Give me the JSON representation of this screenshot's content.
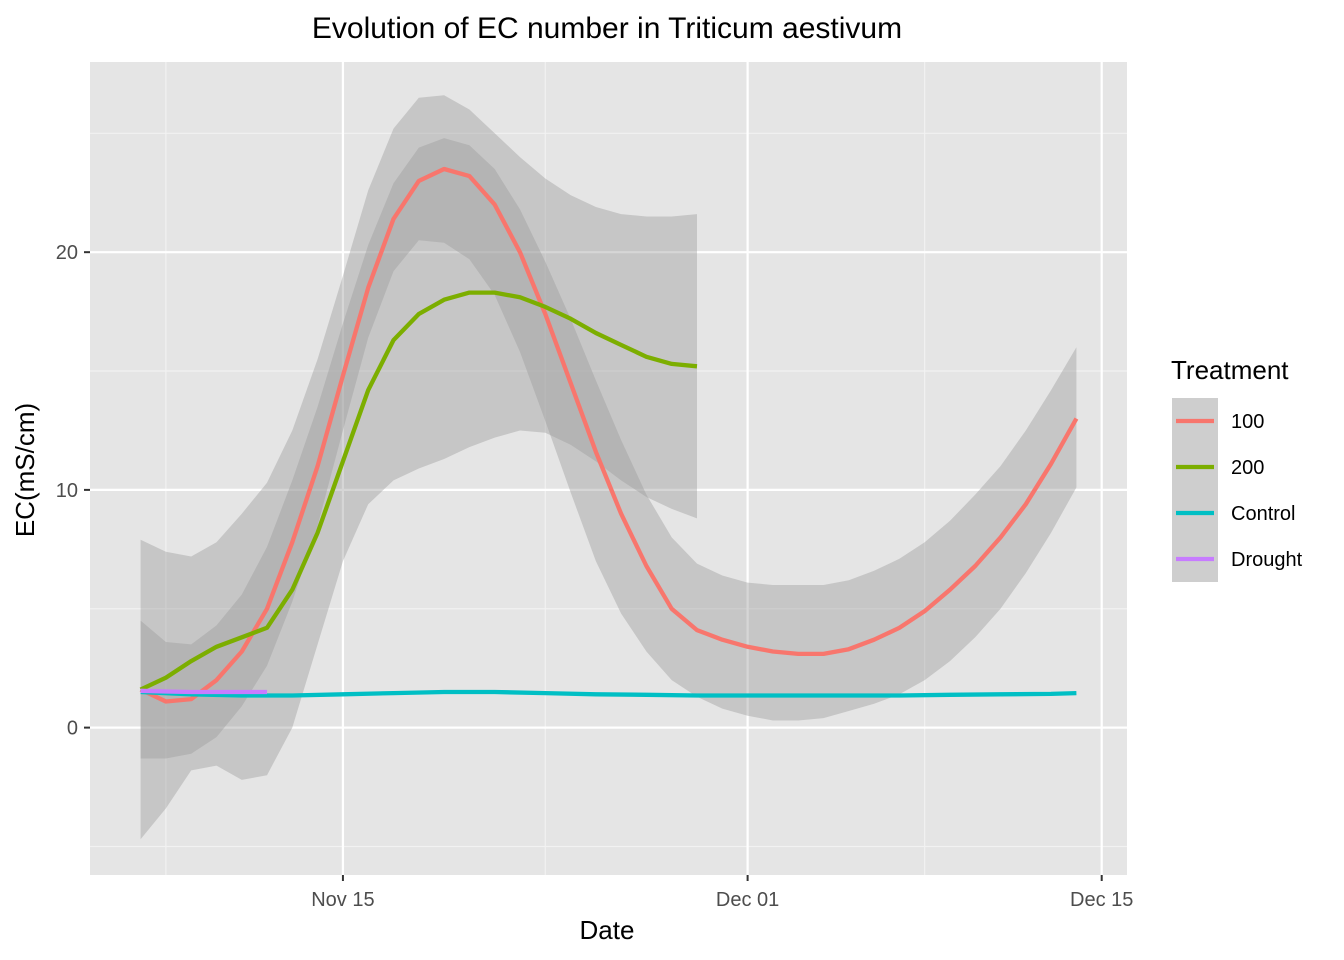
{
  "chart_data": {
    "type": "line",
    "title": "Evolution of EC number in Triticum aestivum",
    "xlabel": "Date",
    "ylabel": "EC(mS/cm)",
    "x_type": "date",
    "xlim": [
      "2021-11-05",
      "2021-12-16"
    ],
    "ylim": [
      -6.2,
      28
    ],
    "x_ticks": [
      {
        "date": "2021-11-15",
        "label": "Nov 15"
      },
      {
        "date": "2021-12-01",
        "label": "Dec 01"
      },
      {
        "date": "2021-12-15",
        "label": "Dec 15"
      }
    ],
    "x_minor_grid": [
      "2021-11-08",
      "2021-11-23",
      "2021-12-08"
    ],
    "y_ticks": [
      0,
      10,
      20
    ],
    "y_minor_grid": [
      -5,
      5,
      15,
      25
    ],
    "grid": true,
    "background": "#e5e5e5",
    "band_color": "#999999",
    "legend": {
      "title": "Treatment",
      "position": "right"
    },
    "series": [
      {
        "name": "100",
        "color": "#f8766d",
        "points": [
          [
            "2021-11-07",
            1.6
          ],
          [
            "2021-11-08",
            1.1
          ],
          [
            "2021-11-09",
            1.2
          ],
          [
            "2021-11-10",
            2.0
          ],
          [
            "2021-11-11",
            3.2
          ],
          [
            "2021-11-12",
            5.0
          ],
          [
            "2021-11-13",
            7.8
          ],
          [
            "2021-11-14",
            11.0
          ],
          [
            "2021-11-15",
            14.8
          ],
          [
            "2021-11-16",
            18.5
          ],
          [
            "2021-11-17",
            21.4
          ],
          [
            "2021-11-18",
            23.0
          ],
          [
            "2021-11-19",
            23.5
          ],
          [
            "2021-11-20",
            23.2
          ],
          [
            "2021-11-21",
            22.0
          ],
          [
            "2021-11-22",
            20.0
          ],
          [
            "2021-11-23",
            17.4
          ],
          [
            "2021-11-24",
            14.5
          ],
          [
            "2021-11-25",
            11.6
          ],
          [
            "2021-11-26",
            9.0
          ],
          [
            "2021-11-27",
            6.8
          ],
          [
            "2021-11-28",
            5.0
          ],
          [
            "2021-11-29",
            4.1
          ],
          [
            "2021-11-30",
            3.7
          ],
          [
            "2021-12-01",
            3.4
          ],
          [
            "2021-12-02",
            3.2
          ],
          [
            "2021-12-03",
            3.1
          ],
          [
            "2021-12-04",
            3.1
          ],
          [
            "2021-12-05",
            3.3
          ],
          [
            "2021-12-06",
            3.7
          ],
          [
            "2021-12-07",
            4.2
          ],
          [
            "2021-12-08",
            4.9
          ],
          [
            "2021-12-09",
            5.8
          ],
          [
            "2021-12-10",
            6.8
          ],
          [
            "2021-12-11",
            8.0
          ],
          [
            "2021-12-12",
            9.4
          ],
          [
            "2021-12-13",
            11.1
          ],
          [
            "2021-12-14",
            13.0
          ]
        ],
        "band_upper": [
          [
            "2021-11-07",
            4.5
          ],
          [
            "2021-11-08",
            3.6
          ],
          [
            "2021-11-09",
            3.5
          ],
          [
            "2021-11-10",
            4.3
          ],
          [
            "2021-11-11",
            5.6
          ],
          [
            "2021-11-12",
            7.6
          ],
          [
            "2021-11-13",
            10.4
          ],
          [
            "2021-11-14",
            13.5
          ],
          [
            "2021-11-15",
            17.0
          ],
          [
            "2021-11-16",
            20.3
          ],
          [
            "2021-11-17",
            22.9
          ],
          [
            "2021-11-18",
            24.4
          ],
          [
            "2021-11-19",
            24.8
          ],
          [
            "2021-11-20",
            24.5
          ],
          [
            "2021-11-21",
            23.5
          ],
          [
            "2021-11-22",
            21.8
          ],
          [
            "2021-11-23",
            19.6
          ],
          [
            "2021-11-24",
            17.2
          ],
          [
            "2021-11-25",
            14.6
          ],
          [
            "2021-11-26",
            12.1
          ],
          [
            "2021-11-27",
            9.8
          ],
          [
            "2021-11-28",
            8.0
          ],
          [
            "2021-11-29",
            6.9
          ],
          [
            "2021-11-30",
            6.4
          ],
          [
            "2021-12-01",
            6.1
          ],
          [
            "2021-12-02",
            6.0
          ],
          [
            "2021-12-03",
            6.0
          ],
          [
            "2021-12-04",
            6.0
          ],
          [
            "2021-12-05",
            6.2
          ],
          [
            "2021-12-06",
            6.6
          ],
          [
            "2021-12-07",
            7.1
          ],
          [
            "2021-12-08",
            7.8
          ],
          [
            "2021-12-09",
            8.7
          ],
          [
            "2021-12-10",
            9.8
          ],
          [
            "2021-12-11",
            11.0
          ],
          [
            "2021-12-12",
            12.5
          ],
          [
            "2021-12-13",
            14.2
          ],
          [
            "2021-12-14",
            16.0
          ]
        ],
        "band_lower": [
          [
            "2021-11-07",
            -1.3
          ],
          [
            "2021-11-08",
            -1.3
          ],
          [
            "2021-11-09",
            -1.1
          ],
          [
            "2021-11-10",
            -0.4
          ],
          [
            "2021-11-11",
            0.9
          ],
          [
            "2021-11-12",
            2.6
          ],
          [
            "2021-11-13",
            5.3
          ],
          [
            "2021-11-14",
            8.5
          ],
          [
            "2021-11-15",
            12.5
          ],
          [
            "2021-11-16",
            16.4
          ],
          [
            "2021-11-17",
            19.2
          ],
          [
            "2021-11-18",
            20.5
          ],
          [
            "2021-11-19",
            20.4
          ],
          [
            "2021-11-20",
            19.7
          ],
          [
            "2021-11-21",
            18.2
          ],
          [
            "2021-11-22",
            15.8
          ],
          [
            "2021-11-23",
            12.9
          ],
          [
            "2021-11-24",
            9.9
          ],
          [
            "2021-11-25",
            7.0
          ],
          [
            "2021-11-26",
            4.8
          ],
          [
            "2021-11-27",
            3.2
          ],
          [
            "2021-11-28",
            2.0
          ],
          [
            "2021-11-29",
            1.3
          ],
          [
            "2021-11-30",
            0.8
          ],
          [
            "2021-12-01",
            0.5
          ],
          [
            "2021-12-02",
            0.3
          ],
          [
            "2021-12-03",
            0.3
          ],
          [
            "2021-12-04",
            0.4
          ],
          [
            "2021-12-05",
            0.7
          ],
          [
            "2021-12-06",
            1.0
          ],
          [
            "2021-12-07",
            1.4
          ],
          [
            "2021-12-08",
            2.0
          ],
          [
            "2021-12-09",
            2.8
          ],
          [
            "2021-12-10",
            3.8
          ],
          [
            "2021-12-11",
            5.0
          ],
          [
            "2021-12-12",
            6.5
          ],
          [
            "2021-12-13",
            8.2
          ],
          [
            "2021-12-14",
            10.1
          ]
        ]
      },
      {
        "name": "200",
        "color": "#7cae00",
        "points": [
          [
            "2021-11-07",
            1.6
          ],
          [
            "2021-11-08",
            2.1
          ],
          [
            "2021-11-09",
            2.8
          ],
          [
            "2021-11-10",
            3.4
          ],
          [
            "2021-11-11",
            3.8
          ],
          [
            "2021-11-12",
            4.2
          ],
          [
            "2021-11-13",
            5.8
          ],
          [
            "2021-11-14",
            8.2
          ],
          [
            "2021-11-15",
            11.2
          ],
          [
            "2021-11-16",
            14.2
          ],
          [
            "2021-11-17",
            16.3
          ],
          [
            "2021-11-18",
            17.4
          ],
          [
            "2021-11-19",
            18.0
          ],
          [
            "2021-11-20",
            18.3
          ],
          [
            "2021-11-21",
            18.3
          ],
          [
            "2021-11-22",
            18.1
          ],
          [
            "2021-11-23",
            17.7
          ],
          [
            "2021-11-24",
            17.2
          ],
          [
            "2021-11-25",
            16.6
          ],
          [
            "2021-11-26",
            16.1
          ],
          [
            "2021-11-27",
            15.6
          ],
          [
            "2021-11-28",
            15.3
          ],
          [
            "2021-11-29",
            15.2
          ]
        ],
        "band_upper": [
          [
            "2021-11-07",
            7.9
          ],
          [
            "2021-11-08",
            7.4
          ],
          [
            "2021-11-09",
            7.2
          ],
          [
            "2021-11-10",
            7.8
          ],
          [
            "2021-11-11",
            9.0
          ],
          [
            "2021-11-12",
            10.3
          ],
          [
            "2021-11-13",
            12.5
          ],
          [
            "2021-11-14",
            15.5
          ],
          [
            "2021-11-15",
            19.0
          ],
          [
            "2021-11-16",
            22.6
          ],
          [
            "2021-11-17",
            25.2
          ],
          [
            "2021-11-18",
            26.5
          ],
          [
            "2021-11-19",
            26.6
          ],
          [
            "2021-11-20",
            26.0
          ],
          [
            "2021-11-21",
            25.0
          ],
          [
            "2021-11-22",
            24.0
          ],
          [
            "2021-11-23",
            23.1
          ],
          [
            "2021-11-24",
            22.4
          ],
          [
            "2021-11-25",
            21.9
          ],
          [
            "2021-11-26",
            21.6
          ],
          [
            "2021-11-27",
            21.5
          ],
          [
            "2021-11-28",
            21.5
          ],
          [
            "2021-11-29",
            21.6
          ]
        ],
        "band_lower": [
          [
            "2021-11-07",
            -4.7
          ],
          [
            "2021-11-08",
            -3.4
          ],
          [
            "2021-11-09",
            -1.8
          ],
          [
            "2021-11-10",
            -1.6
          ],
          [
            "2021-11-11",
            -2.2
          ],
          [
            "2021-11-12",
            -2.0
          ],
          [
            "2021-11-13",
            0.0
          ],
          [
            "2021-11-14",
            3.5
          ],
          [
            "2021-11-15",
            7.0
          ],
          [
            "2021-11-16",
            9.4
          ],
          [
            "2021-11-17",
            10.4
          ],
          [
            "2021-11-18",
            10.9
          ],
          [
            "2021-11-19",
            11.3
          ],
          [
            "2021-11-20",
            11.8
          ],
          [
            "2021-11-21",
            12.2
          ],
          [
            "2021-11-22",
            12.5
          ],
          [
            "2021-11-23",
            12.4
          ],
          [
            "2021-11-24",
            11.9
          ],
          [
            "2021-11-25",
            11.2
          ],
          [
            "2021-11-26",
            10.4
          ],
          [
            "2021-11-27",
            9.7
          ],
          [
            "2021-11-28",
            9.2
          ],
          [
            "2021-11-29",
            8.8
          ]
        ]
      },
      {
        "name": "Control",
        "color": "#00bfc4",
        "points": [
          [
            "2021-11-07",
            1.5
          ],
          [
            "2021-11-09",
            1.4
          ],
          [
            "2021-11-11",
            1.35
          ],
          [
            "2021-11-13",
            1.35
          ],
          [
            "2021-11-15",
            1.4
          ],
          [
            "2021-11-17",
            1.45
          ],
          [
            "2021-11-19",
            1.5
          ],
          [
            "2021-11-21",
            1.5
          ],
          [
            "2021-11-23",
            1.45
          ],
          [
            "2021-11-25",
            1.4
          ],
          [
            "2021-11-27",
            1.38
          ],
          [
            "2021-11-29",
            1.35
          ],
          [
            "2021-12-01",
            1.35
          ],
          [
            "2021-12-03",
            1.35
          ],
          [
            "2021-12-05",
            1.35
          ],
          [
            "2021-12-07",
            1.35
          ],
          [
            "2021-12-09",
            1.38
          ],
          [
            "2021-12-11",
            1.4
          ],
          [
            "2021-12-13",
            1.42
          ],
          [
            "2021-12-14",
            1.45
          ]
        ]
      },
      {
        "name": "Drought",
        "color": "#c77cff",
        "points": [
          [
            "2021-11-07",
            1.55
          ],
          [
            "2021-11-08",
            1.52
          ],
          [
            "2021-11-09",
            1.5
          ],
          [
            "2021-11-10",
            1.5
          ],
          [
            "2021-11-11",
            1.5
          ],
          [
            "2021-11-12",
            1.5
          ]
        ]
      }
    ]
  }
}
